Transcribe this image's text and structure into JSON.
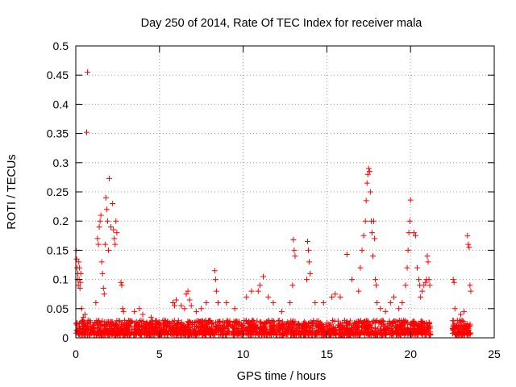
{
  "chart_data": {
    "type": "scatter",
    "title": "Day 250 of 2014, Rate Of TEC Index for receiver mala",
    "xlabel": "GPS time / hours",
    "ylabel": "ROTI / TECUs",
    "xlim": [
      0,
      25
    ],
    "ylim": [
      0,
      0.5
    ],
    "x_ticks": [
      "0",
      "5",
      "10",
      "15",
      "20",
      "25"
    ],
    "y_ticks": [
      "0",
      "0.05",
      "0.1",
      "0.15",
      "0.2",
      "0.25",
      "0.3",
      "0.35",
      "0.4",
      "0.45",
      "0.5"
    ],
    "grid": true,
    "marker": "+",
    "color": "#ff0000",
    "series": [
      {
        "name": "ROTI",
        "note": "dense scatter with a ~0.005-0.03 TECU baseline band from 0 to 21.2 h and 22.5 to 23.6 h",
        "x": [
          0.02,
          0.05,
          0.08,
          0.1,
          0.12,
          0.15,
          0.18,
          0.2,
          0.22,
          0.25,
          0.28,
          0.3,
          0.35,
          0.4,
          0.45,
          0.55,
          0.65,
          0.7,
          1.2,
          1.3,
          1.35,
          1.4,
          1.45,
          1.5,
          1.55,
          1.6,
          1.65,
          1.7,
          1.75,
          1.8,
          1.85,
          1.9,
          1.95,
          2.0,
          2.1,
          2.2,
          2.25,
          2.3,
          2.35,
          2.4,
          2.45,
          2.7,
          2.75,
          2.8,
          2.85,
          3.5,
          3.8,
          4.0,
          4.5,
          5.2,
          5.8,
          5.9,
          6.0,
          6.3,
          6.5,
          6.6,
          6.7,
          6.8,
          6.9,
          7.2,
          7.5,
          7.8,
          8.3,
          8.35,
          8.4,
          8.5,
          9.0,
          9.5,
          10.2,
          10.5,
          10.9,
          11.0,
          11.2,
          11.5,
          11.8,
          12.3,
          12.8,
          12.95,
          13.0,
          13.05,
          13.1,
          13.8,
          13.85,
          13.9,
          13.95,
          14.0,
          14.3,
          14.8,
          15.3,
          15.5,
          15.8,
          16.2,
          16.5,
          16.9,
          17.0,
          17.1,
          17.2,
          17.3,
          17.35,
          17.4,
          17.45,
          17.5,
          17.55,
          17.6,
          17.65,
          17.7,
          17.75,
          17.8,
          17.85,
          17.9,
          17.95,
          18.0,
          18.2,
          18.5,
          18.8,
          19.0,
          19.3,
          19.5,
          19.7,
          19.8,
          19.85,
          19.9,
          19.95,
          20.0,
          20.2,
          20.3,
          20.4,
          20.5,
          20.55,
          20.6,
          20.7,
          20.8,
          20.9,
          20.95,
          21.0,
          21.05,
          21.1,
          21.15,
          22.55,
          22.6,
          22.65,
          22.8,
          23.0,
          23.2,
          23.4,
          23.45,
          23.5,
          23.55,
          23.6
        ],
        "y": [
          0.15,
          0.135,
          0.12,
          0.1,
          0.11,
          0.09,
          0.13,
          0.1,
          0.12,
          0.085,
          0.095,
          0.11,
          0.05,
          0.03,
          0.035,
          0.04,
          0.352,
          0.455,
          0.06,
          0.17,
          0.16,
          0.19,
          0.2,
          0.21,
          0.13,
          0.11,
          0.085,
          0.075,
          0.16,
          0.24,
          0.22,
          0.2,
          0.15,
          0.273,
          0.19,
          0.23,
          0.185,
          0.17,
          0.16,
          0.2,
          0.18,
          0.095,
          0.09,
          0.05,
          0.045,
          0.045,
          0.05,
          0.04,
          0.035,
          0.03,
          0.06,
          0.055,
          0.065,
          0.055,
          0.05,
          0.075,
          0.08,
          0.065,
          0.055,
          0.045,
          0.05,
          0.06,
          0.115,
          0.1,
          0.08,
          0.06,
          0.06,
          0.05,
          0.07,
          0.08,
          0.08,
          0.09,
          0.105,
          0.07,
          0.06,
          0.045,
          0.06,
          0.09,
          0.168,
          0.15,
          0.14,
          0.1,
          0.165,
          0.15,
          0.13,
          0.11,
          0.06,
          0.06,
          0.07,
          0.075,
          0.07,
          0.143,
          0.1,
          0.08,
          0.12,
          0.15,
          0.175,
          0.2,
          0.235,
          0.265,
          0.28,
          0.29,
          0.285,
          0.25,
          0.2,
          0.18,
          0.14,
          0.2,
          0.17,
          0.1,
          0.09,
          0.06,
          0.05,
          0.045,
          0.06,
          0.07,
          0.05,
          0.06,
          0.09,
          0.12,
          0.15,
          0.18,
          0.2,
          0.236,
          0.18,
          0.175,
          0.12,
          0.1,
          0.09,
          0.07,
          0.08,
          0.09,
          0.095,
          0.1,
          0.14,
          0.13,
          0.1,
          0.09,
          0.1,
          0.095,
          0.05,
          0.03,
          0.04,
          0.045,
          0.175,
          0.16,
          0.155,
          0.09,
          0.08
        ]
      }
    ],
    "baseline_band": [
      {
        "x_start": 0.0,
        "x_end": 21.2,
        "y_min": 0.005,
        "y_max": 0.03
      },
      {
        "x_start": 22.5,
        "x_end": 23.6,
        "y_min": 0.005,
        "y_max": 0.03
      }
    ],
    "visual": {
      "point_glyph_size": 5
    }
  }
}
